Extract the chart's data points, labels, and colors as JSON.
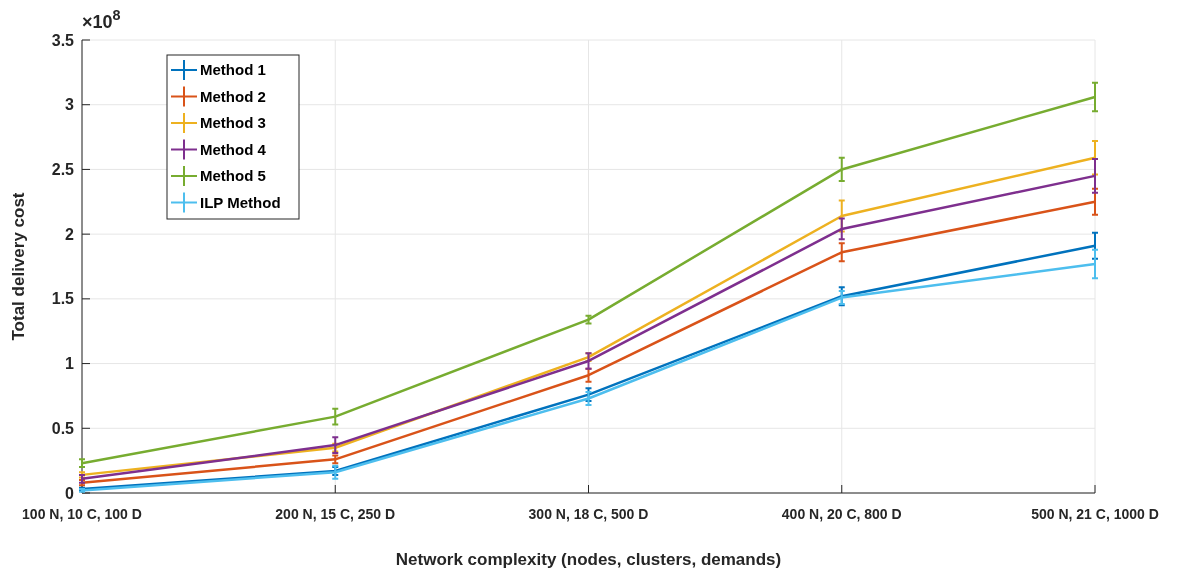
{
  "chart_data": {
    "type": "line",
    "xlabel": "Network complexity (nodes, clusters, demands)",
    "ylabel": "Total delivery  cost",
    "annotations": [
      "×10$^{8}$"
    ],
    "categories": [
      "100 N, 10 C, 100 D",
      "200 N, 15 C, 250 D",
      "300 N, 18 C, 500 D",
      "400 N, 20 C, 800 D",
      "500 N, 21 C, 1000 D"
    ],
    "ylim": [
      0,
      3.5
    ],
    "yticks": [
      0,
      0.5,
      1,
      1.5,
      2,
      2.5,
      3,
      3.5
    ],
    "grid": true,
    "legend": "top left",
    "line_style": "solid",
    "series": [
      {
        "name": "Method 1",
        "color": "#0072bd",
        "values": [
          0.03,
          0.17,
          0.76,
          1.52,
          1.91
        ],
        "errors": [
          0.01,
          0.03,
          0.05,
          0.07,
          0.1
        ]
      },
      {
        "name": "Method 2",
        "color": "#d95319",
        "values": [
          0.08,
          0.26,
          0.91,
          1.86,
          2.25
        ],
        "errors": [
          0.02,
          0.03,
          0.05,
          0.07,
          0.1
        ]
      },
      {
        "name": "Method 3",
        "color": "#edb120",
        "values": [
          0.14,
          0.35,
          1.05,
          2.14,
          2.59
        ],
        "errors": [
          0.02,
          0.03,
          0.03,
          0.12,
          0.13
        ]
      },
      {
        "name": "Method 4",
        "color": "#7e2f8e",
        "values": [
          0.11,
          0.37,
          1.02,
          2.04,
          2.45
        ],
        "errors": [
          0.03,
          0.06,
          0.06,
          0.08,
          0.13
        ]
      },
      {
        "name": "Method 5",
        "color": "#77ac30",
        "values": [
          0.23,
          0.59,
          1.34,
          2.5,
          3.06
        ],
        "errors": [
          0.03,
          0.06,
          0.03,
          0.09,
          0.11
        ]
      },
      {
        "name": "ILP Method",
        "color": "#4dbeee",
        "values": [
          0.02,
          0.16,
          0.73,
          1.51,
          1.77
        ],
        "errors": [
          0.01,
          0.05,
          0.05,
          0.05,
          0.11
        ]
      }
    ]
  }
}
